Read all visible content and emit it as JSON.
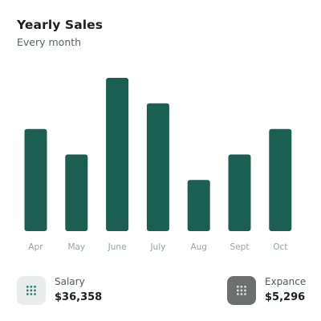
{
  "header": {
    "title": "Yearly Sales",
    "subtitle": "Every month"
  },
  "colors": {
    "bar": "#1b5e52",
    "tick_label": "#9aa0a6",
    "salary_badge_bg": "#e9eeed",
    "salary_badge_icon": "#2f7f72",
    "expense_badge_bg": "#6c6f6e",
    "expense_badge_icon": "#d9dcdb"
  },
  "chart_data": {
    "type": "bar",
    "title": "Yearly Sales",
    "subtitle": "Every month",
    "categories": [
      "Apr",
      "May",
      "June",
      "July",
      "Aug",
      "Sept",
      "Oct"
    ],
    "values": [
      4,
      3,
      6,
      5,
      2,
      3,
      4
    ],
    "ylim": [
      0,
      6
    ],
    "grid": false,
    "legend": "none"
  },
  "summary": {
    "salary": {
      "label": "Salary",
      "value": "$36,358",
      "icon": "grid-dots-icon"
    },
    "expense": {
      "label": "Expance",
      "value": "$5,296",
      "icon": "grid-dots-icon"
    }
  }
}
